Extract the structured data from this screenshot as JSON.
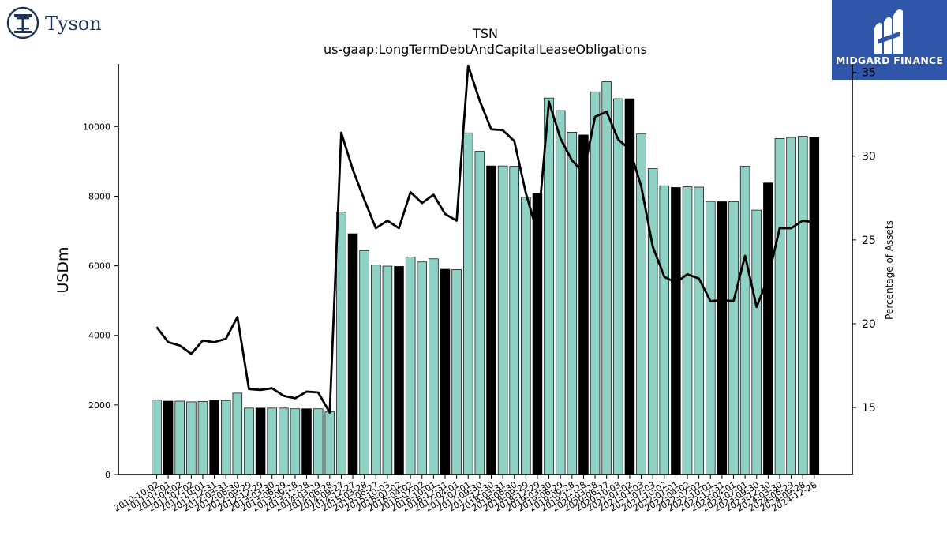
{
  "brands": {
    "company": "Tyson",
    "sponsor": "MIDGARD FINANCE"
  },
  "colors": {
    "bar_default": "#8fd1c4",
    "bar_highlight": "#000000",
    "line": "#000000",
    "midgard_bg": "#2f56a8",
    "tyson_navy": "#1b3157"
  },
  "chart_data": {
    "type": "bar",
    "title": "TSN",
    "subtitle": "us-gaap:LongTermDebtAndCapitalLeaseObligations",
    "ylabel": "USDm",
    "y2label": "Percentage of Assets",
    "ylim": [
      0,
      11800
    ],
    "y2lim": [
      11,
      35.5
    ],
    "yticks": [
      0,
      2000,
      4000,
      6000,
      8000,
      10000
    ],
    "y2ticks": [
      15,
      20,
      25,
      30,
      35
    ],
    "grid": false,
    "categories": [
      "2010-10-02",
      "2011-01-01",
      "2011-04-02",
      "2011-07-02",
      "2011-10-01",
      "2011-12-31",
      "2012-03-31",
      "2012-06-30",
      "2012-09-29",
      "2012-12-29",
      "2013-03-30",
      "2013-06-29",
      "2013-09-28",
      "2013-12-28",
      "2014-03-29",
      "2014-06-28",
      "2014-09-27",
      "2014-12-27",
      "2015-03-28",
      "2015-06-27",
      "2015-10-03",
      "2016-01-02",
      "2016-04-02",
      "2016-07-02",
      "2016-10-01",
      "2016-12-31",
      "2017-04-01",
      "2017-07-01",
      "2017-09-30",
      "2017-12-30",
      "2018-03-31",
      "2018-06-30",
      "2018-09-29",
      "2018-12-29",
      "2019-03-30",
      "2019-06-29",
      "2019-09-28",
      "2019-12-28",
      "2020-03-28",
      "2020-06-27",
      "2020-10-03",
      "2021-01-02",
      "2021-04-03",
      "2021-07-03",
      "2021-10-02",
      "2022-01-01",
      "2022-04-02",
      "2022-07-02",
      "2022-10-01",
      "2022-12-31",
      "2023-04-01",
      "2023-07-01",
      "2023-09-30",
      "2023-12-30",
      "2024-03-30",
      "2024-06-29",
      "2024-09-28",
      "2024-12-28"
    ],
    "tick_labels_shown": [
      "2010-10-02",
      "2011-01-01",
      "2011-04-02",
      "2011-07-02",
      "2011-10-01",
      "2011-12-31",
      "2012-03-31",
      "2012-06-30",
      "2012-09-29",
      "2012-12-29",
      "2013-03-30",
      "2013-06-29",
      "2013-09-28",
      "2013-12-28",
      "2014-03-29",
      "2014-06-28",
      "2014-09-27",
      "2014-12-27",
      "2015-03-28",
      "2015-06-27",
      "2015-10-03",
      "2016-01-02",
      "2016-04-02",
      "2016-07-02",
      "2016-10-01",
      "2016-12-31",
      "2017-04-01",
      "2017-07-01",
      "2017-09-30",
      "2017-12-30",
      "2018-03-31",
      "2018-06-30",
      "2018-09-29",
      "2018-12-29",
      "2019-03-30",
      "2019-06-29",
      "2019-09-28",
      "2019-12-28",
      "2020-03-28",
      "2020-06-27",
      "2020-10-03",
      "2021-01-02",
      "2021-04-03",
      "2021-07-03",
      "2021-10-02",
      "2022-01-01",
      "2022-04-02",
      "2022-07-02",
      "2022-10-01",
      "2022-12-31",
      "2023-04-01",
      "2023-07-01",
      "2023-09-30",
      "2023-12-30",
      "2024-03-30",
      "2024-06-29",
      "2024-09-28",
      "2024-12-28"
    ],
    "values": [
      2140,
      2110,
      2110,
      2090,
      2100,
      2130,
      2130,
      2340,
      1910,
      1910,
      1910,
      1910,
      1890,
      1890,
      1890,
      1800,
      7540,
      6920,
      6440,
      6020,
      5990,
      5980,
      6250,
      6110,
      6200,
      5900,
      5890,
      9820,
      9290,
      8870,
      8870,
      8860,
      7970,
      8080,
      10820,
      10460,
      9840,
      9760,
      11000,
      11290,
      10800,
      10800,
      9800,
      8790,
      8300,
      8250,
      8270,
      8260,
      7850,
      7840,
      7840,
      8860,
      7600,
      8380,
      9660,
      9690,
      9720,
      9690
    ],
    "highlight": [
      false,
      true,
      false,
      false,
      false,
      true,
      false,
      false,
      false,
      true,
      false,
      false,
      false,
      true,
      false,
      false,
      false,
      true,
      false,
      false,
      false,
      true,
      false,
      false,
      false,
      true,
      false,
      false,
      false,
      true,
      false,
      false,
      false,
      true,
      false,
      false,
      false,
      true,
      false,
      false,
      false,
      true,
      false,
      false,
      false,
      true,
      false,
      false,
      false,
      true,
      false,
      false,
      false,
      true,
      false,
      false,
      false,
      true
    ],
    "line_series": {
      "axis": "right",
      "values": [
        19.8,
        18.9,
        18.7,
        18.2,
        19.0,
        18.9,
        19.1,
        20.4,
        16.1,
        16.05,
        16.15,
        15.7,
        15.55,
        15.95,
        15.9,
        14.7,
        31.4,
        29.2,
        27.4,
        25.7,
        26.15,
        25.7,
        27.85,
        27.2,
        27.7,
        26.55,
        26.15,
        35.4,
        33.3,
        31.6,
        31.55,
        30.9,
        27.8,
        25.4,
        33.25,
        31.05,
        29.75,
        29.0,
        32.35,
        32.65,
        31.0,
        30.4,
        28.2,
        24.6,
        22.8,
        22.45,
        22.95,
        22.7,
        21.35,
        21.4,
        21.35,
        24.05,
        21.0,
        22.75,
        25.7,
        25.7,
        26.15,
        26.05
      ]
    }
  }
}
